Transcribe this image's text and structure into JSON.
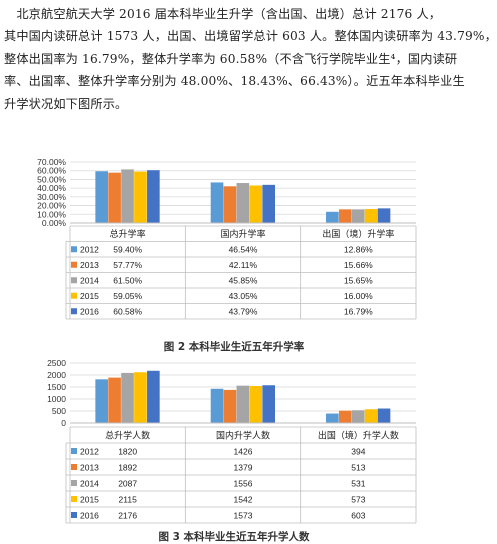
{
  "paragraph": {
    "lines": [
      "　北京航空航天大学 2016 届本科毕业生升学（含出国、出境）总计 2176 人，",
      "其中国内读研总计 1573 人，出国、出境留学总计 603 人。整体国内读研率为 43.79%，",
      "整体出国率为 16.79%，整体升学率为 60.58%（不含飞行学院毕业生⁴，国内读研",
      "率、出国率、整体升学率分别为 48.00%、18.43%、66.43%）。近五年本科毕业生",
      "升学状况如下图所示。"
    ]
  },
  "colors": {
    "2012": "#5b9bd5",
    "2013": "#ed7d31",
    "2014": "#a5a5a5",
    "2015": "#ffc000",
    "2016": "#4472c4"
  },
  "chart_data": [
    {
      "type": "bar",
      "title": "",
      "categories": [
        "总升学率",
        "国内升学率",
        "出国（境）升学率"
      ],
      "ylim": [
        0,
        70
      ],
      "y_ticks": [
        "0.00%",
        "10.00%",
        "20.00%",
        "30.00%",
        "40.00%",
        "50.00%",
        "60.00%",
        "70.00%"
      ],
      "grid": true,
      "legend": "table-left",
      "series": [
        {
          "name": "2012",
          "values": [
            59.4,
            46.54,
            12.86
          ],
          "labels": [
            "59.40%",
            "46.54%",
            "12.86%"
          ]
        },
        {
          "name": "2013",
          "values": [
            57.77,
            42.11,
            15.66
          ],
          "labels": [
            "57.77%",
            "42.11%",
            "15.66%"
          ]
        },
        {
          "name": "2014",
          "values": [
            61.5,
            45.85,
            15.65
          ],
          "labels": [
            "61.50%",
            "45.85%",
            "15.65%"
          ]
        },
        {
          "name": "2015",
          "values": [
            59.05,
            43.05,
            16.0
          ],
          "labels": [
            "59.05%",
            "43.05%",
            "16.00%"
          ]
        },
        {
          "name": "2016",
          "values": [
            60.58,
            43.79,
            16.79
          ],
          "labels": [
            "60.58%",
            "43.79%",
            "16.79%"
          ]
        }
      ]
    },
    {
      "type": "bar",
      "title": "",
      "categories": [
        "总升学人数",
        "国内升学人数",
        "出国（境）升学人数"
      ],
      "ylim": [
        0,
        2500
      ],
      "y_ticks": [
        "0",
        "500",
        "1000",
        "1500",
        "2000",
        "2500"
      ],
      "grid": true,
      "legend": "table-left",
      "series": [
        {
          "name": "2012",
          "values": [
            1820,
            1426,
            394
          ],
          "labels": [
            "1820",
            "1426",
            "394"
          ]
        },
        {
          "name": "2013",
          "values": [
            1892,
            1379,
            513
          ],
          "labels": [
            "1892",
            "1379",
            "513"
          ]
        },
        {
          "name": "2014",
          "values": [
            2087,
            1556,
            531
          ],
          "labels": [
            "2087",
            "1556",
            "531"
          ]
        },
        {
          "name": "2015",
          "values": [
            2115,
            1542,
            573
          ],
          "labels": [
            "2115",
            "1542",
            "573"
          ]
        },
        {
          "name": "2016",
          "values": [
            2176,
            1573,
            603
          ],
          "labels": [
            "2176",
            "1573",
            "603"
          ]
        }
      ]
    }
  ],
  "captions": {
    "figure2": "图 2 本科毕业生近五年升学率",
    "figure3": "图 3 本科毕业生近五年升学人数"
  }
}
